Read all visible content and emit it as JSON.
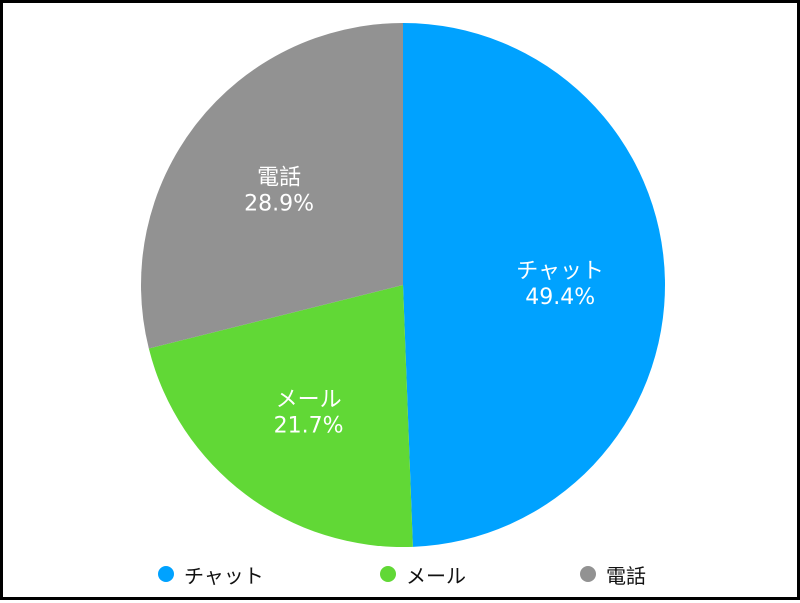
{
  "chart_data": {
    "type": "pie",
    "title": "",
    "categories": [
      "チャット",
      "メール",
      "電話"
    ],
    "values": [
      49.4,
      21.7,
      28.9
    ],
    "labels": [
      "49.4%",
      "21.7%",
      "28.9%"
    ],
    "colors": [
      "#00A2FF",
      "#61D836",
      "#929292"
    ],
    "start_angle": "12 o'clock",
    "direction": "clockwise",
    "legend_position": "bottom",
    "slice_label_color": "#FFFFFF"
  },
  "legend": {
    "items": [
      {
        "label": "チャット",
        "color": "#00A2FF"
      },
      {
        "label": "メール",
        "color": "#61D836"
      },
      {
        "label": "電話",
        "color": "#929292"
      }
    ]
  }
}
